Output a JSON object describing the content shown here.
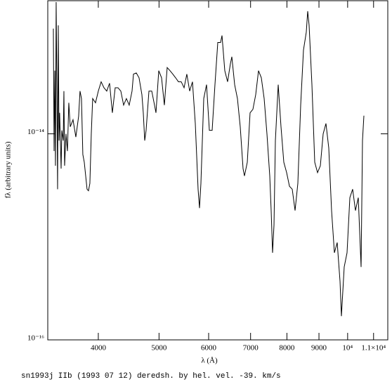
{
  "chart_data": {
    "type": "line",
    "x_label": "λ (Å)",
    "y_label": "fλ (arbitrary units)",
    "caption": "sn1993j IIb (1993 07 12) deredsh. by hel. vel.   -39. km/s",
    "x_scale": "log",
    "y_scale": "log",
    "color": "#000000",
    "xlim": [
      3322,
      11590
    ],
    "ylim": [
      1e-16,
      1.96e-13
    ],
    "xticks": [
      4000,
      5000,
      6000,
      7000,
      8000,
      9000,
      {
        "value": 10000,
        "label": "10⁴"
      },
      {
        "value": 11000,
        "label": "1.1×10⁴"
      }
    ],
    "yticks": [
      {
        "value": 1e-16,
        "label": "10⁻¹⁶"
      },
      {
        "value": 1e-14,
        "label": "10⁻¹⁴"
      }
    ],
    "x": [
      3391,
      3400,
      3409,
      3417,
      3426,
      3435,
      3444,
      3453,
      3462,
      3470,
      3489,
      3498,
      3516,
      3525,
      3534,
      3552,
      3571,
      3589,
      3608,
      3645,
      3683,
      3721,
      3740,
      3760,
      3779,
      3799,
      3838,
      3858,
      3878,
      3898,
      3918,
      3959,
      4000,
      4042,
      4084,
      4126,
      4169,
      4212,
      4256,
      4300,
      4345,
      4390,
      4435,
      4481,
      4528,
      4552,
      4599,
      4646,
      4695,
      4719,
      4744,
      4768,
      4818,
      4868,
      4918,
      4944,
      4995,
      5047,
      5099,
      5152,
      5206,
      5260,
      5314,
      5370,
      5425,
      5482,
      5538,
      5596,
      5654,
      5713,
      5772,
      5802,
      5832,
      5893,
      5954,
      6016,
      6078,
      6141,
      6205,
      6269,
      6302,
      6367,
      6433,
      6500,
      6534,
      6602,
      6670,
      6739,
      6809,
      6844,
      6916,
      6987,
      7060,
      7133,
      7207,
      7282,
      7358,
      7434,
      7511,
      7550,
      7589,
      7629,
      7668,
      7748,
      7828,
      7909,
      7992,
      8075,
      8158,
      8243,
      8328,
      8415,
      8502,
      8590,
      8635,
      8680,
      8770,
      8861,
      8953,
      9046,
      9140,
      9234,
      9330,
      9427,
      9525,
      9624,
      9724,
      9774,
      9875,
      9978,
      10082,
      10186,
      10292,
      10399,
      10507,
      10561,
      10616
    ],
    "values": [
      1.05e-13,
      6.8e-15,
      4.1e-14,
      4.9e-15,
      1.9e-13,
      3e-14,
      2.9e-15,
      1.13e-13,
      8.6e-15,
      1.6e-14,
      4.6e-15,
      1.08e-14,
      8.6e-15,
      2.6e-14,
      4.9e-15,
      1e-14,
      6.8e-15,
      2e-14,
      1.17e-14,
      1.37e-14,
      9.3e-15,
      1.48e-14,
      2.6e-14,
      2.2e-14,
      6.3e-15,
      5.3e-15,
      2.9e-15,
      2.8e-15,
      3.3e-15,
      1e-14,
      2.2e-14,
      2e-14,
      2.6e-14,
      3.2e-14,
      2.8e-14,
      2.6e-14,
      3.1e-14,
      1.6e-14,
      2.8e-14,
      2.8e-14,
      2.6e-14,
      1.9e-14,
      2.2e-14,
      1.9e-14,
      2.6e-14,
      3.8e-14,
      3.9e-14,
      3.5e-14,
      2.4e-14,
      1.6e-14,
      8.6e-15,
      1.08e-14,
      2.6e-14,
      2.6e-14,
      1.9e-14,
      1.6e-14,
      4.1e-14,
      3.5e-14,
      1.9e-14,
      4.4e-14,
      4.1e-14,
      3.8e-14,
      3.5e-14,
      3.2e-14,
      3.2e-14,
      2.8e-14,
      3.8e-14,
      2.6e-14,
      3.2e-14,
      1.26e-14,
      2.9e-15,
      1.9e-15,
      3.3e-15,
      2.2e-14,
      3e-14,
      1.08e-14,
      1.08e-14,
      3e-14,
      7.7e-14,
      7.7e-14,
      9e-14,
      4.1e-14,
      3.2e-14,
      4.8e-14,
      5.6e-14,
      3e-14,
      2.2e-14,
      1.17e-14,
      4.6e-15,
      3.9e-15,
      5.3e-15,
      1.6e-14,
      1.73e-14,
      2.4e-14,
      4.1e-14,
      3.5e-14,
      2.2e-14,
      1e-14,
      3.9e-15,
      1.8e-15,
      7e-16,
      1.3e-15,
      8.6e-15,
      3e-14,
      1.17e-14,
      5.3e-15,
      4.2e-15,
      3.1e-15,
      2.9e-15,
      1.8e-15,
      3.3e-15,
      1.9e-14,
      6.5e-14,
      9.7e-14,
      1.55e-13,
      1.13e-13,
      3e-14,
      5.3e-15,
      4.2e-15,
      4.9e-15,
      1e-14,
      1.26e-14,
      7.3e-15,
      1.8e-15,
      7e-16,
      8.8e-16,
      3.7e-16,
      1.7e-16,
      5.1e-16,
      7e-16,
      2.4e-15,
      2.9e-15,
      1.8e-15,
      2.4e-15,
      5.1e-16,
      8.6e-15,
      1.5e-14
    ]
  }
}
